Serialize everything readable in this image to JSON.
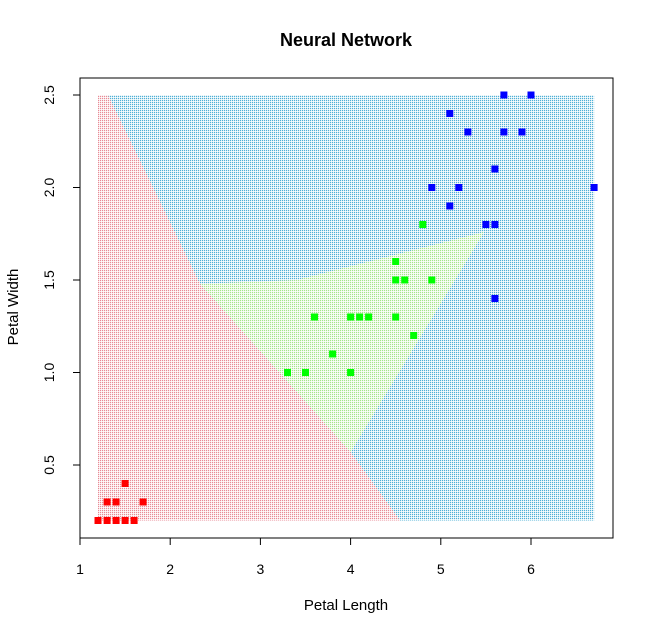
{
  "chart_data": {
    "type": "scatter",
    "title": "Neural Network",
    "xlabel": "Petal Length",
    "ylabel": "Petal Width",
    "xlim": [
      1.0,
      6.7
    ],
    "ylim": [
      0.2,
      2.5
    ],
    "xticks": [
      "1",
      "2",
      "3",
      "4",
      "5",
      "6"
    ],
    "yticks": [
      "0.5",
      "1.0",
      "1.5",
      "2.0",
      "2.5"
    ],
    "grid": false,
    "legend": "none",
    "region_colors": {
      "setosa_region": "#e88a95",
      "versicolor_region": "#a6e58a",
      "virginica_region": "#4fb0d6"
    },
    "region_polygons": {
      "setosa_region": [
        [
          1.2,
          2.5
        ],
        [
          1.31,
          2.5
        ],
        [
          2.33,
          1.48
        ],
        [
          4.0,
          0.57
        ],
        [
          4.55,
          0.2
        ],
        [
          1.2,
          0.2
        ]
      ],
      "versicolor_region": [
        [
          2.33,
          1.48
        ],
        [
          3.4,
          1.5
        ],
        [
          5.48,
          1.76
        ],
        [
          4.0,
          0.57
        ]
      ]
    },
    "series": [
      {
        "color": "#ff0000",
        "points": [
          [
            1.2,
            0.2
          ],
          [
            1.3,
            0.2
          ],
          [
            1.4,
            0.2
          ],
          [
            1.5,
            0.2
          ],
          [
            1.6,
            0.2
          ],
          [
            1.3,
            0.3
          ],
          [
            1.4,
            0.3
          ],
          [
            1.7,
            0.3
          ],
          [
            1.5,
            0.4
          ]
        ]
      },
      {
        "color": "#00ff00",
        "points": [
          [
            3.3,
            1.0
          ],
          [
            3.5,
            1.0
          ],
          [
            4.0,
            1.0
          ],
          [
            3.8,
            1.1
          ],
          [
            3.6,
            1.3
          ],
          [
            4.0,
            1.3
          ],
          [
            4.1,
            1.3
          ],
          [
            4.2,
            1.3
          ],
          [
            4.5,
            1.3
          ],
          [
            4.7,
            1.2
          ],
          [
            4.5,
            1.5
          ],
          [
            4.6,
            1.5
          ],
          [
            4.9,
            1.5
          ],
          [
            4.5,
            1.6
          ],
          [
            4.8,
            1.8
          ]
        ]
      },
      {
        "color": "#0000ff",
        "points": [
          [
            5.6,
            1.4
          ],
          [
            5.5,
            1.8
          ],
          [
            5.6,
            1.8
          ],
          [
            5.1,
            1.9
          ],
          [
            4.9,
            2.0
          ],
          [
            5.2,
            2.0
          ],
          [
            6.7,
            2.0
          ],
          [
            5.6,
            2.1
          ],
          [
            5.3,
            2.3
          ],
          [
            5.7,
            2.3
          ],
          [
            5.9,
            2.3
          ],
          [
            5.1,
            2.4
          ],
          [
            5.7,
            2.5
          ],
          [
            6.0,
            2.5
          ]
        ]
      }
    ]
  }
}
